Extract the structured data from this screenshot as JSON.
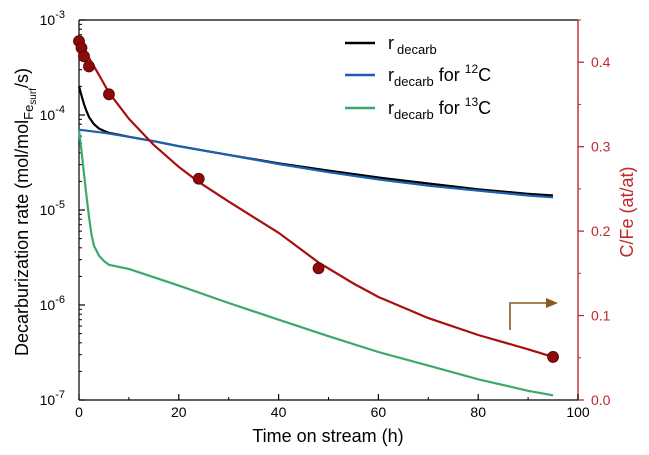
{
  "colors": {
    "axis_left": "#000000",
    "axis_right": "#c0282d",
    "decarb_total": "#000000",
    "decarb_12c": "#1f5fb0",
    "decarb_13c": "#3aaa6a",
    "cfe_line": "#a80f0f",
    "cfe_marker": "#8b0a0a",
    "arrow": "#8a5a1e"
  },
  "chart_data": {
    "type": "line",
    "x_axis": {
      "label": "Time on stream (h)",
      "range": [
        0,
        100
      ],
      "ticks": [
        0,
        20,
        40,
        60,
        80,
        100
      ],
      "tick_labels": [
        "0",
        "20",
        "40",
        "60",
        "80",
        "100"
      ]
    },
    "y_axis_left": {
      "label_main": "Decarburization rate (mol/mol",
      "label_sub": "Fe",
      "label_subsub": "surf",
      "label_tail": "/s)",
      "scale": "log",
      "range": [
        1e-07,
        0.001
      ],
      "ticks": [
        1e-07,
        1e-06,
        1e-05,
        0.0001,
        0.001
      ],
      "tick_bases": [
        "10",
        "10",
        "10",
        "10",
        "10"
      ],
      "tick_exponents": [
        "-7",
        "-6",
        "-5",
        "-4",
        "-3"
      ]
    },
    "y_axis_right": {
      "label": "C/Fe (at/at)",
      "scale": "linear",
      "range": [
        0,
        0.45
      ],
      "ticks": [
        0,
        0.1,
        0.2,
        0.3,
        0.4
      ],
      "tick_labels": [
        "0.0",
        "0.1",
        "0.2",
        "0.3",
        "0.4"
      ]
    },
    "series": [
      {
        "id": "decarb_total",
        "axis": "left",
        "x": [
          0,
          0.5,
          1,
          1.5,
          2,
          3,
          4,
          5,
          6,
          8,
          10,
          15,
          20,
          30,
          40,
          50,
          60,
          70,
          80,
          90,
          95
        ],
        "y": [
          0.0002,
          0.00016,
          0.00013,
          0.00011,
          9.5e-05,
          8e-05,
          7.2e-05,
          6.8e-05,
          6.5e-05,
          6.2e-05,
          5.9e-05,
          5.3e-05,
          4.7e-05,
          3.8e-05,
          3.1e-05,
          2.6e-05,
          2.2e-05,
          1.9e-05,
          1.65e-05,
          1.48e-05,
          1.42e-05
        ]
      },
      {
        "id": "decarb_12c",
        "axis": "left",
        "x": [
          0,
          5,
          10,
          15,
          20,
          30,
          40,
          50,
          60,
          70,
          80,
          90,
          95
        ],
        "y": [
          7e-05,
          6.5e-05,
          5.9e-05,
          5.3e-05,
          4.7e-05,
          3.8e-05,
          3.05e-05,
          2.5e-05,
          2.1e-05,
          1.8e-05,
          1.6e-05,
          1.42e-05,
          1.36e-05
        ]
      },
      {
        "id": "decarb_13c",
        "axis": "left",
        "x": [
          0,
          0.5,
          1,
          1.5,
          2,
          2.5,
          3,
          4,
          5,
          6,
          10,
          20,
          30,
          40,
          50,
          60,
          70,
          80,
          90,
          95
        ],
        "y": [
          7e-05,
          4.2e-05,
          2.4e-05,
          1.4e-05,
          8.5e-06,
          5.5e-06,
          4.2e-06,
          3.3e-06,
          2.9e-06,
          2.65e-06,
          2.4e-06,
          1.6e-06,
          1.05e-06,
          7e-07,
          4.7e-07,
          3.2e-07,
          2.3e-07,
          1.65e-07,
          1.25e-07,
          1.12e-07
        ]
      },
      {
        "id": "cfe_model",
        "axis": "right",
        "x": [
          0,
          1,
          2,
          4,
          6,
          10,
          15,
          20,
          24,
          30,
          40,
          48,
          55,
          60,
          70,
          80,
          90,
          95
        ],
        "y": [
          0.425,
          0.415,
          0.405,
          0.385,
          0.364,
          0.333,
          0.302,
          0.276,
          0.258,
          0.235,
          0.198,
          0.163,
          0.138,
          0.122,
          0.097,
          0.077,
          0.06,
          0.051
        ]
      },
      {
        "id": "cfe_points",
        "axis": "right",
        "x": [
          0,
          0.5,
          1,
          2,
          6,
          24,
          48,
          95
        ],
        "y": [
          0.425,
          0.417,
          0.407,
          0.395,
          0.362,
          0.262,
          0.156,
          0.051
        ]
      }
    ],
    "legend": {
      "placement": "top-right",
      "entries": [
        {
          "series": "decarb_total",
          "main": "r",
          "sub": "decarb",
          "tail": "",
          "sup": "",
          "after": ""
        },
        {
          "series": "decarb_12c",
          "main": "r",
          "sub": "decarb",
          "tail": " for ",
          "sup": "12",
          "after": "C"
        },
        {
          "series": "decarb_13c",
          "main": "r",
          "sub": "decarb",
          "tail": " for ",
          "sup": "13",
          "after": "C"
        }
      ]
    },
    "annotation": {
      "type": "arrow",
      "meaning": "points-to-right-axis"
    },
    "grid": false
  }
}
